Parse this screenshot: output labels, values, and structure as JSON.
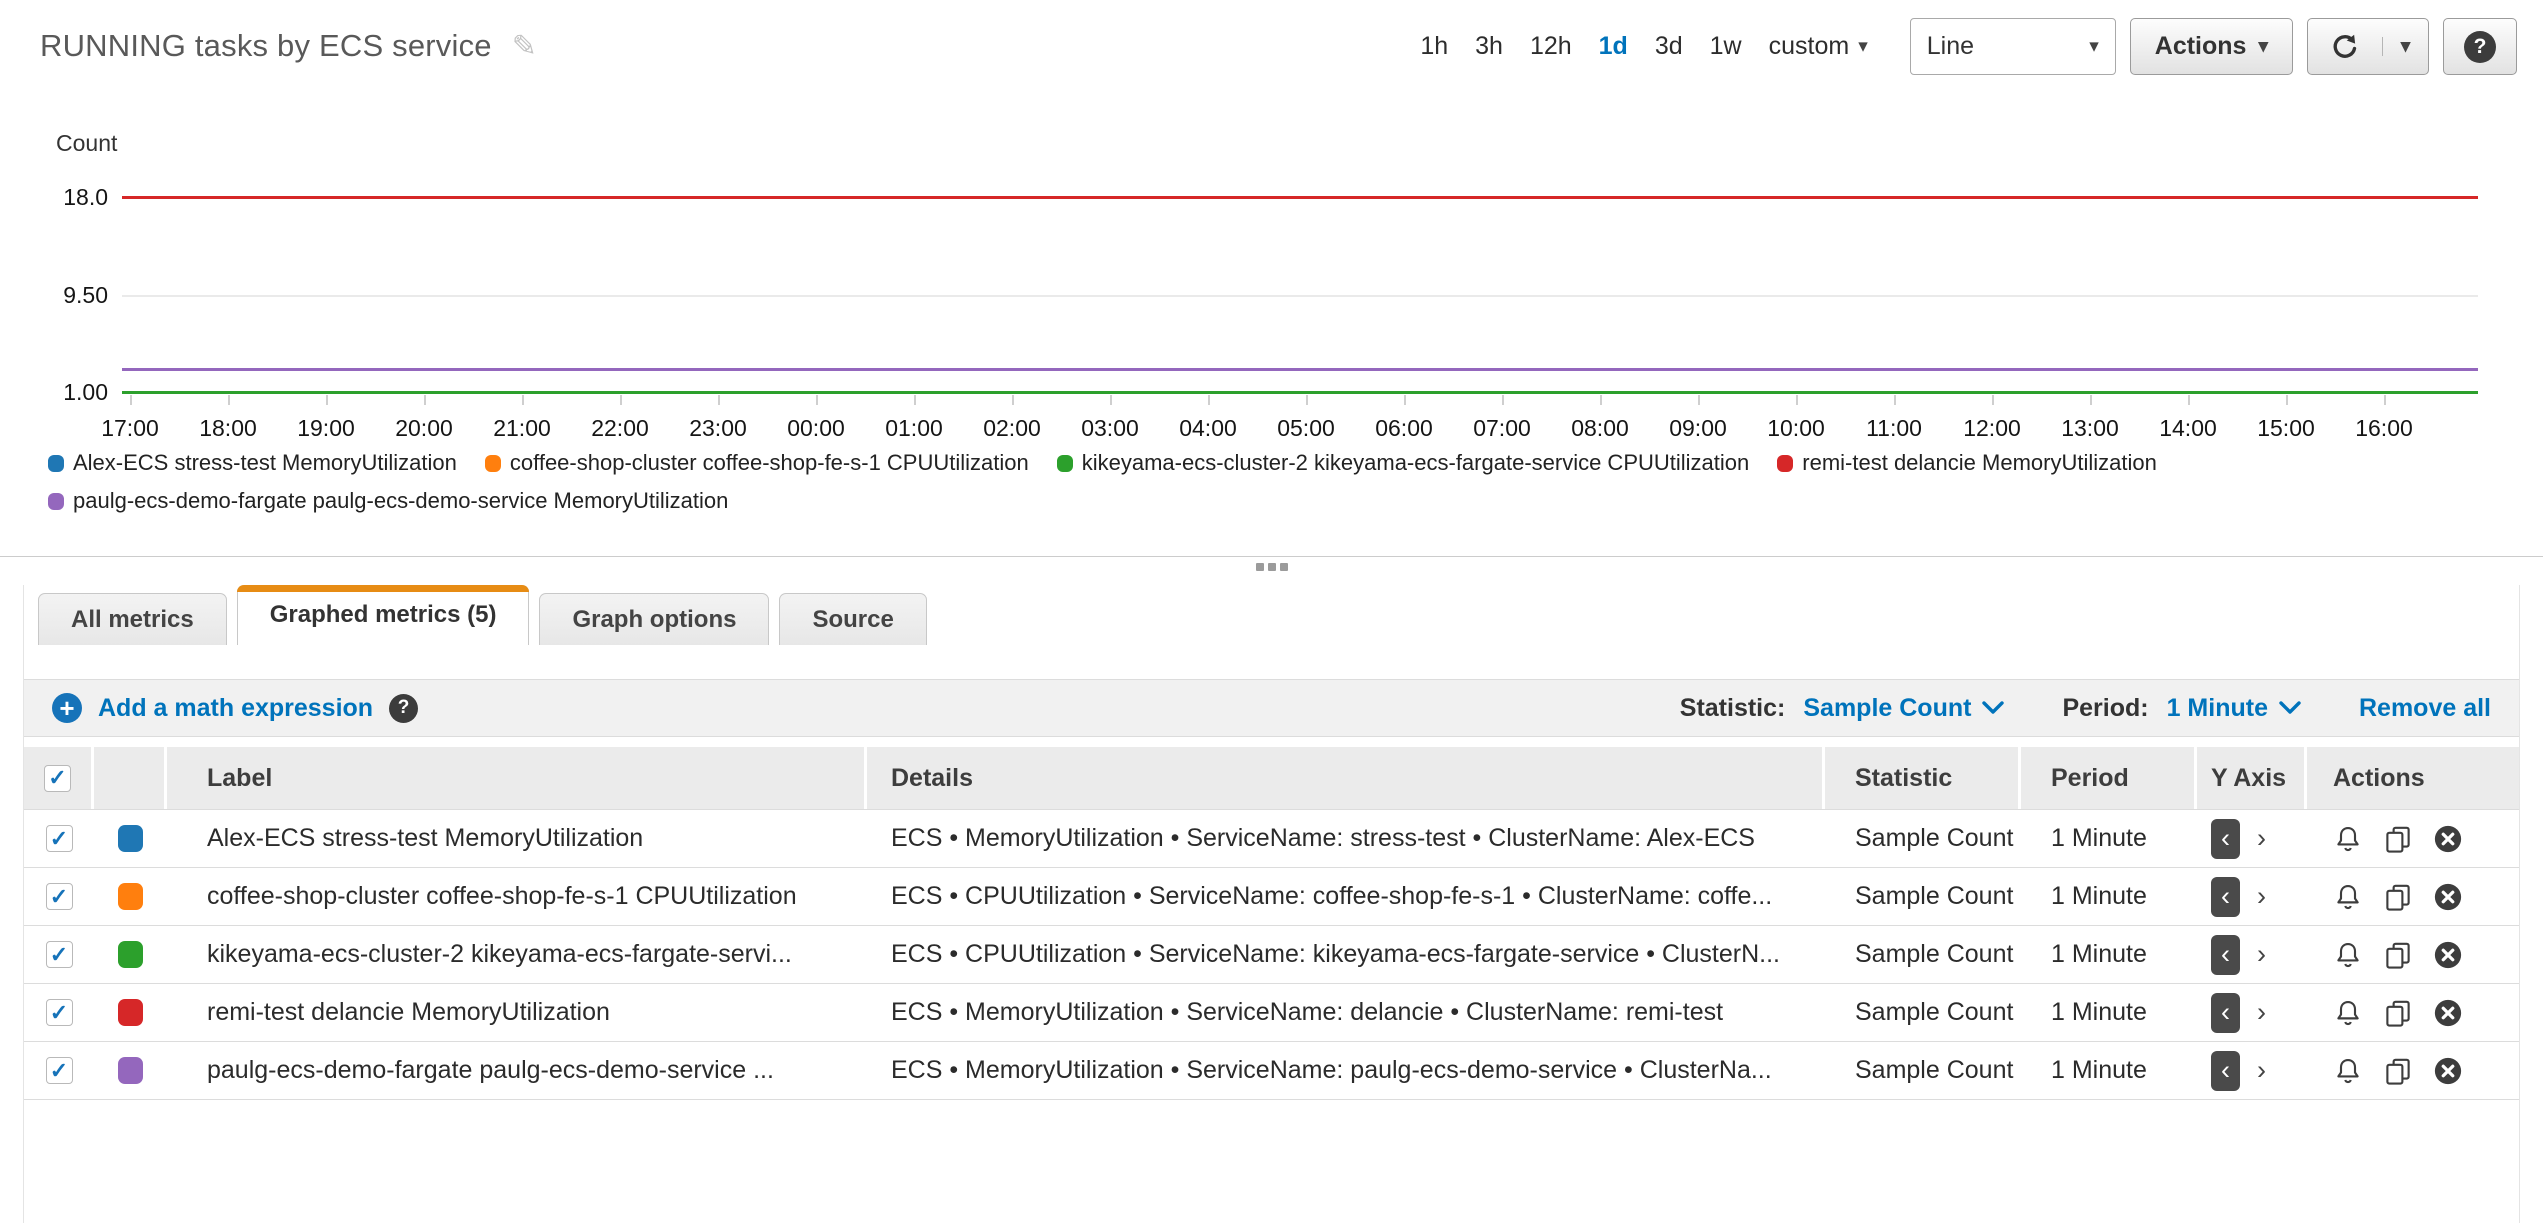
{
  "header": {
    "title": "RUNNING tasks by ECS service",
    "time_ranges": [
      "1h",
      "3h",
      "12h",
      "1d",
      "3d",
      "1w"
    ],
    "time_selected": "1d",
    "time_custom": "custom",
    "chart_type": "Line",
    "actions_label": "Actions"
  },
  "chart_data": {
    "type": "line",
    "ylabel": "Count",
    "yticks": [
      {
        "label": "18.0",
        "value": 18
      },
      {
        "label": "9.50",
        "value": 9.5
      },
      {
        "label": "1.00",
        "value": 1
      }
    ],
    "ylim": [
      1,
      18
    ],
    "xticks": [
      "17:00",
      "18:00",
      "19:00",
      "20:00",
      "21:00",
      "22:00",
      "23:00",
      "00:00",
      "01:00",
      "02:00",
      "03:00",
      "04:00",
      "05:00",
      "06:00",
      "07:00",
      "08:00",
      "09:00",
      "10:00",
      "11:00",
      "12:00",
      "13:00",
      "14:00",
      "15:00",
      "16:00"
    ],
    "x_range": "24 hours (1d), hourly ticks",
    "grid": true,
    "legend_position": "bottom",
    "series": [
      {
        "name": "Alex-ECS stress-test MemoryUtilization",
        "color": "#1f77b4",
        "value": 1
      },
      {
        "name": "coffee-shop-cluster coffee-shop-fe-s-1 CPUUtilization",
        "color": "#ff7f0e",
        "value": 1
      },
      {
        "name": "kikeyama-ecs-cluster-2 kikeyama-ecs-fargate-service CPUUtilization",
        "color": "#2ca02c",
        "value": 1
      },
      {
        "name": "remi-test delancie MemoryUtilization",
        "color": "#d62728",
        "value": 18
      },
      {
        "name": "paulg-ecs-demo-fargate paulg-ecs-demo-service MemoryUtilization",
        "color": "#9467bd",
        "value": 3
      }
    ]
  },
  "tabs": [
    {
      "label": "All metrics",
      "active": false
    },
    {
      "label": "Graphed metrics (5)",
      "active": true
    },
    {
      "label": "Graph options",
      "active": false
    },
    {
      "label": "Source",
      "active": false
    }
  ],
  "toolbar": {
    "add_label": "Add a math expression",
    "statistic_label": "Statistic:",
    "statistic_value": "Sample Count",
    "period_label": "Period:",
    "period_value": "1 Minute",
    "remove_all_label": "Remove all"
  },
  "table": {
    "headers": [
      "Label",
      "Details",
      "Statistic",
      "Period",
      "Y Axis",
      "Actions"
    ],
    "rows": [
      {
        "checked": true,
        "color": "#1f77b4",
        "label": "Alex-ECS stress-test MemoryUtilization",
        "details": "ECS • MemoryUtilization • ServiceName: stress-test • ClusterName: Alex-ECS",
        "statistic": "Sample Count",
        "period": "1 Minute"
      },
      {
        "checked": true,
        "color": "#ff7f0e",
        "label": "coffee-shop-cluster coffee-shop-fe-s-1 CPUUtilization",
        "details": "ECS • CPUUtilization • ServiceName: coffee-shop-fe-s-1 • ClusterName: coffe...",
        "statistic": "Sample Count",
        "period": "1 Minute"
      },
      {
        "checked": true,
        "color": "#2ca02c",
        "label": "kikeyama-ecs-cluster-2 kikeyama-ecs-fargate-servi...",
        "details": "ECS • CPUUtilization • ServiceName: kikeyama-ecs-fargate-service • ClusterN...",
        "statistic": "Sample Count",
        "period": "1 Minute"
      },
      {
        "checked": true,
        "color": "#d62728",
        "label": "remi-test delancie MemoryUtilization",
        "details": "ECS • MemoryUtilization • ServiceName: delancie • ClusterName: remi-test",
        "statistic": "Sample Count",
        "period": "1 Minute"
      },
      {
        "checked": true,
        "color": "#9467bd",
        "label": "paulg-ecs-demo-fargate paulg-ecs-demo-service ...",
        "details": "ECS • MemoryUtilization • ServiceName: paulg-ecs-demo-service • ClusterNa...",
        "statistic": "Sample Count",
        "period": "1 Minute"
      }
    ]
  },
  "icons": {
    "pencil": "✎",
    "caret_down": "▾",
    "check": "✓",
    "chevron_left": "‹",
    "chevron_right": "›",
    "add": "+",
    "help": "?"
  },
  "colors": {
    "link_blue": "#0073bb",
    "active_tab_orange": "#e78c14",
    "grid": "#eaeaea"
  }
}
